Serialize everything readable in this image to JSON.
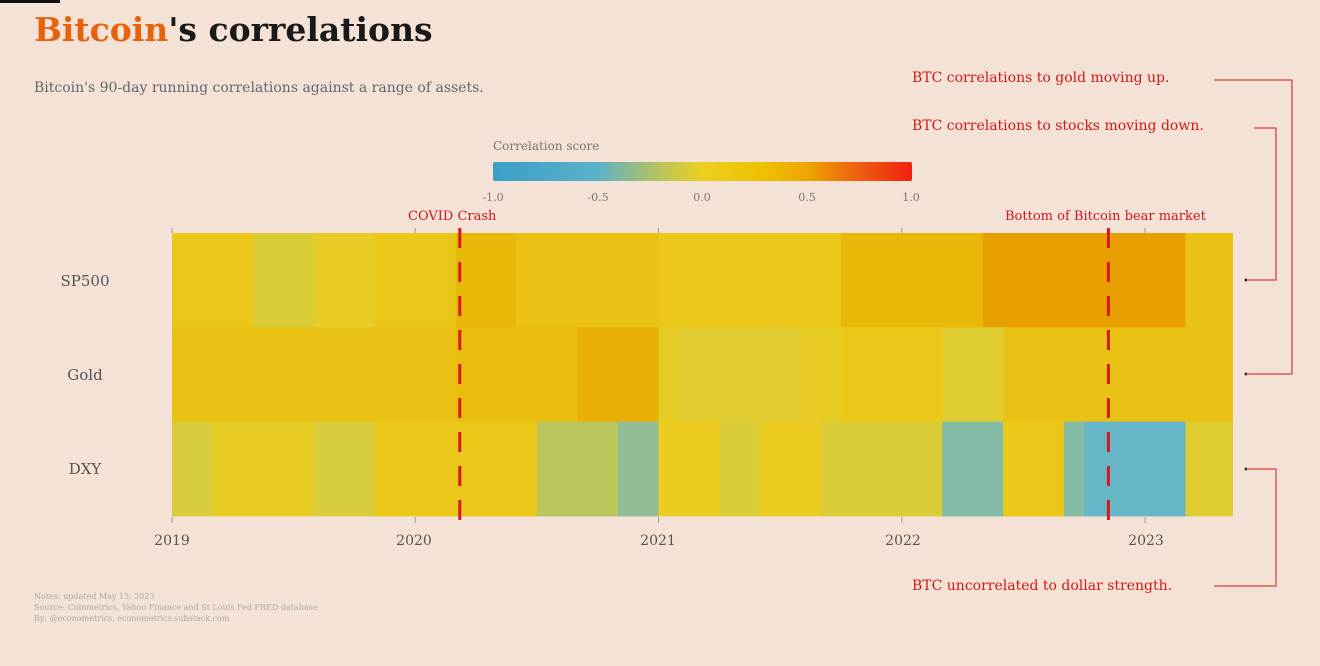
{
  "title_highlight": "Bitcoin",
  "title_rest": "'s correlations",
  "subtitle": "Bitcoin's 90-day running correlations against a range of assets.",
  "notes": [
    "Notes: updated May 15, 2023",
    "Source: Coinmetrics, Yahoo Finance and St Louis Fed FRED database",
    "By: @econometrics, econometrics.substack.com"
  ],
  "right_annotations": {
    "gold": "BTC correlations to gold moving up.",
    "stocks": "BTC correlations to stocks moving down.",
    "dollar": "BTC uncorrelated to dollar strength."
  },
  "colors": {
    "title_accent": "#e8620c",
    "annotation": "#d01818",
    "background": "#f3e2d5"
  },
  "chart_data": {
    "type": "heatmap",
    "legend": {
      "title": "Correlation score",
      "ticks": [
        "-1.0",
        "-0.5",
        "0.0",
        "0.5",
        "1.0"
      ],
      "range": [
        -1,
        1
      ],
      "placement": "top-center"
    },
    "rows": [
      "SP500",
      "Gold",
      "DXY"
    ],
    "x_ticks": [
      "2019",
      "2020",
      "2021",
      "2022",
      "2023"
    ],
    "x": [
      "2019-01",
      "2019-02",
      "2019-03",
      "2019-04",
      "2019-05",
      "2019-06",
      "2019-07",
      "2019-08",
      "2019-09",
      "2019-10",
      "2019-11",
      "2019-12",
      "2020-01",
      "2020-02",
      "2020-03",
      "2020-04",
      "2020-05",
      "2020-06",
      "2020-07",
      "2020-08",
      "2020-09",
      "2020-10",
      "2020-11",
      "2020-12",
      "2021-01",
      "2021-02",
      "2021-03",
      "2021-04",
      "2021-05",
      "2021-06",
      "2021-07",
      "2021-08",
      "2021-09",
      "2021-10",
      "2021-11",
      "2021-12",
      "2022-01",
      "2022-02",
      "2022-03",
      "2022-04",
      "2022-05",
      "2022-06",
      "2022-07",
      "2022-08",
      "2022-09",
      "2022-10",
      "2022-11",
      "2022-12",
      "2023-01",
      "2023-02",
      "2023-03",
      "2023-04",
      "2023-05"
    ],
    "values": [
      [
        0.3,
        0.3,
        0.3,
        0.3,
        0.05,
        0.05,
        0.05,
        0.2,
        0.2,
        0.2,
        0.3,
        0.3,
        0.3,
        0.3,
        0.45,
        0.45,
        0.45,
        0.35,
        0.35,
        0.35,
        0.35,
        0.35,
        0.35,
        0.35,
        0.3,
        0.3,
        0.3,
        0.3,
        0.3,
        0.3,
        0.3,
        0.3,
        0.3,
        0.45,
        0.45,
        0.45,
        0.45,
        0.45,
        0.45,
        0.45,
        0.6,
        0.6,
        0.6,
        0.6,
        0.6,
        0.6,
        0.6,
        0.6,
        0.6,
        0.6,
        0.35,
        0.35,
        0.35
      ],
      [
        0.35,
        0.35,
        0.35,
        0.35,
        0.35,
        0.35,
        0.35,
        0.35,
        0.35,
        0.35,
        0.35,
        0.35,
        0.35,
        0.35,
        0.4,
        0.4,
        0.4,
        0.4,
        0.4,
        0.4,
        0.5,
        0.5,
        0.5,
        0.5,
        0.2,
        0.12,
        0.12,
        0.12,
        0.12,
        0.12,
        0.12,
        0.2,
        0.2,
        0.3,
        0.3,
        0.3,
        0.3,
        0.3,
        0.1,
        0.1,
        0.1,
        0.35,
        0.35,
        0.35,
        0.35,
        0.35,
        0.35,
        0.35,
        0.35,
        0.35,
        0.35,
        0.35,
        0.35
      ],
      [
        0.0,
        0.0,
        0.2,
        0.2,
        0.2,
        0.2,
        0.2,
        0.0,
        0.0,
        0.0,
        0.3,
        0.3,
        0.3,
        0.3,
        0.3,
        0.3,
        0.3,
        0.3,
        -0.15,
        -0.15,
        -0.15,
        -0.15,
        -0.35,
        -0.35,
        0.25,
        0.25,
        0.25,
        0.05,
        0.05,
        0.25,
        0.25,
        0.25,
        0.05,
        0.05,
        0.05,
        0.05,
        0.05,
        0.05,
        -0.4,
        -0.4,
        -0.4,
        0.3,
        0.3,
        0.3,
        -0.4,
        -0.55,
        -0.55,
        -0.55,
        -0.55,
        -0.55,
        0.1,
        0.1,
        0.1
      ]
    ],
    "events": [
      {
        "label": "COVID Crash",
        "date": "2020-03"
      },
      {
        "label": "Bottom of Bitcoin bear market",
        "date": "2022-11"
      }
    ]
  }
}
